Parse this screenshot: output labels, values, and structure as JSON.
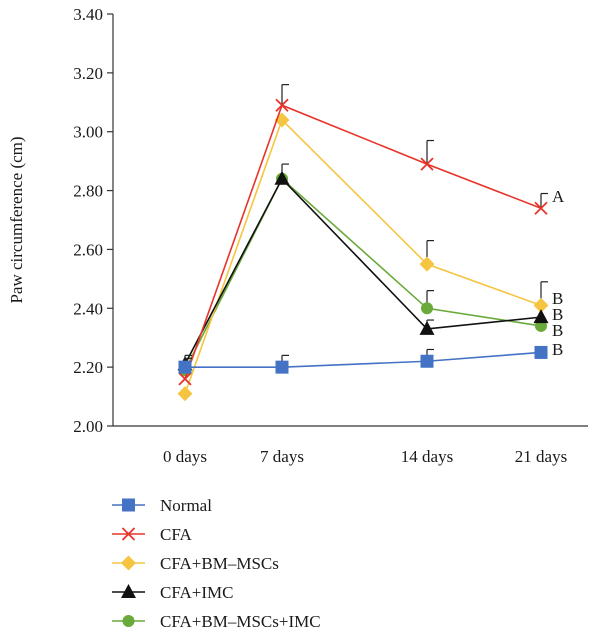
{
  "chart_data": {
    "type": "line",
    "ylabel": "Paw circumference (cm)",
    "xlabel": "",
    "categories": [
      "0 days",
      "7 days",
      "14 days",
      "21 days"
    ],
    "ylim": [
      2.0,
      3.4
    ],
    "yticks": [
      "2.00",
      "2.20",
      "2.40",
      "2.60",
      "2.80",
      "3.00",
      "3.20",
      "3.40"
    ],
    "grid": false,
    "legend_position": "bottom-left",
    "series": [
      {
        "name": "Normal",
        "color": "#4472c4",
        "marker": "square",
        "values": [
          2.2,
          2.2,
          2.22,
          2.25
        ],
        "errors": [
          0.03,
          0.04,
          0.04,
          0.0
        ],
        "end_label": "B"
      },
      {
        "name": "CFA",
        "color": "#e8332a",
        "marker": "x",
        "values": [
          2.16,
          3.09,
          2.89,
          2.74
        ],
        "errors": [
          0.0,
          0.07,
          0.08,
          0.05
        ],
        "end_label": "A"
      },
      {
        "name": "CFA+BM–MSCs",
        "color": "#f5c542",
        "marker": "diamond",
        "values": [
          2.11,
          3.04,
          2.55,
          2.41
        ],
        "errors": [
          0.0,
          0.0,
          0.08,
          0.08
        ],
        "end_label": "B"
      },
      {
        "name": "CFA+IMC",
        "color": "#111111",
        "marker": "triangle",
        "values": [
          2.21,
          2.84,
          2.33,
          2.37
        ],
        "errors": [
          0.03,
          0.05,
          0.03,
          0.0
        ],
        "end_label": "B"
      },
      {
        "name": "CFA+BM–MSCs+IMC",
        "color": "#6aaa3a",
        "marker": "circle",
        "values": [
          2.19,
          2.84,
          2.4,
          2.34
        ],
        "errors": [
          0.0,
          0.0,
          0.06,
          0.0
        ],
        "end_label": "B"
      }
    ]
  }
}
